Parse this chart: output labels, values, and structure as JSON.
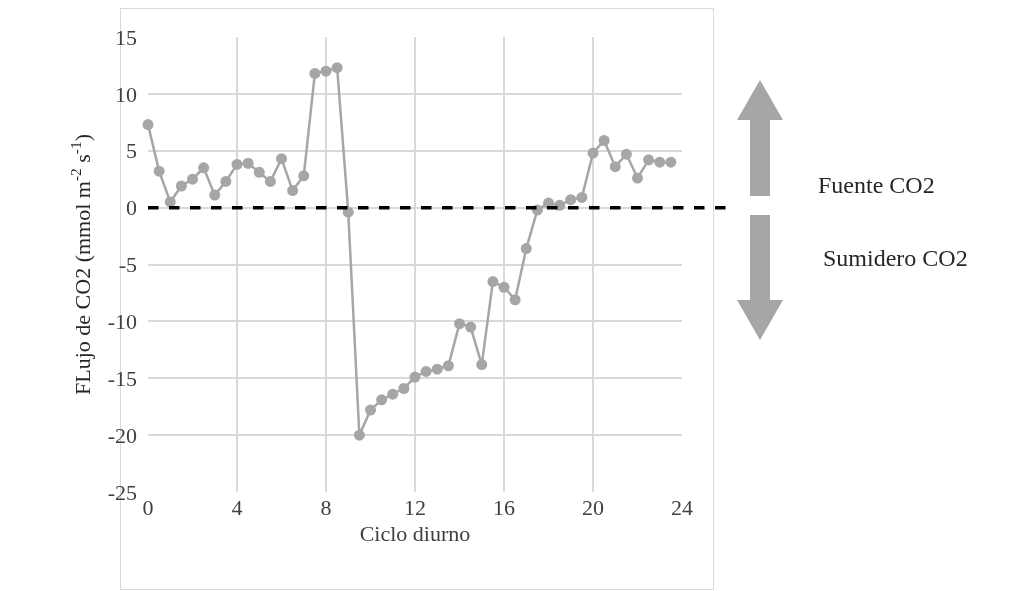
{
  "chart_data": {
    "type": "line",
    "xlabel": "Ciclo diurno",
    "ylabel": "FLujo de CO2 (mmol m$^{-2}$ s$^{-1}$)",
    "x": [
      0,
      0.5,
      1,
      1.5,
      2,
      2.5,
      3,
      3.5,
      4,
      4.5,
      5,
      5.5,
      6,
      6.5,
      7,
      7.5,
      8,
      8.5,
      9,
      9.5,
      10,
      10.5,
      11,
      11.5,
      12,
      12.5,
      13,
      13.5,
      14,
      14.5,
      15,
      15.5,
      16,
      16.5,
      17,
      17.5,
      18,
      18.5,
      19,
      19.5,
      20,
      20.5,
      21,
      21.5,
      22,
      22.5,
      23,
      23.5
    ],
    "series": [
      {
        "color": "#a6a6a6",
        "values": [
          7.3,
          3.2,
          0.5,
          1.9,
          2.5,
          3.5,
          1.1,
          2.3,
          3.8,
          3.9,
          3.1,
          2.3,
          4.3,
          1.5,
          2.8,
          11.8,
          12.0,
          12.3,
          -0.4,
          -20.0,
          -17.8,
          -16.9,
          -16.4,
          -15.9,
          -14.9,
          -14.4,
          -14.2,
          -13.9,
          -10.2,
          -10.5,
          -13.8,
          -6.5,
          -7.0,
          -8.1,
          -3.6,
          -0.2,
          0.4,
          0.2,
          0.7,
          0.9,
          4.8,
          5.9,
          3.6,
          4.7,
          2.6,
          4.2,
          4.0,
          4.0
        ]
      }
    ],
    "xlim": [
      0,
      24
    ],
    "xticks": [
      0,
      4,
      8,
      12,
      16,
      20,
      24
    ],
    "ylim": [
      -25,
      15
    ],
    "yticks": [
      -25,
      -20,
      -15,
      -10,
      -5,
      0,
      5,
      10,
      15
    ],
    "grid": true,
    "marker": "circle",
    "line_style": "solid",
    "ref_lines": [
      {
        "axis": "y",
        "value": 0,
        "color": "#000000",
        "line_style": "dashed"
      }
    ],
    "annotations": [
      "Fuente CO2",
      "Sumidero CO2"
    ]
  }
}
